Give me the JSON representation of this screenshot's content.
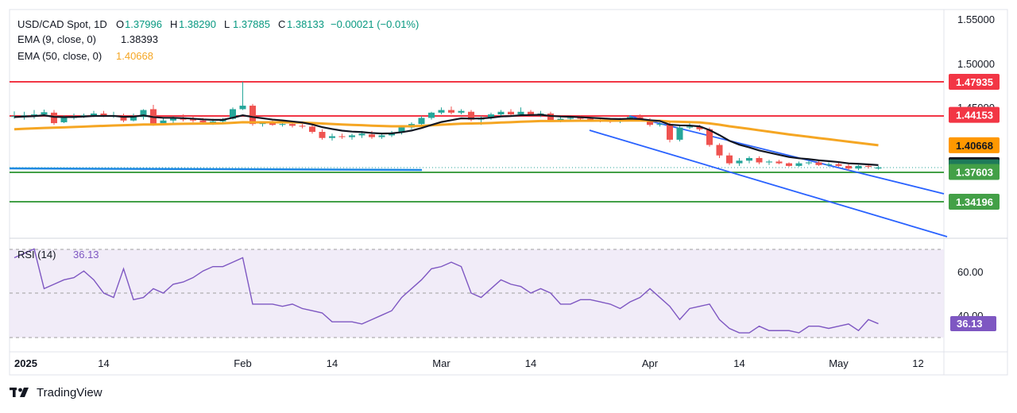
{
  "header": {
    "title": "USD/CAD Spot, 1D",
    "ohlc": [
      {
        "k": "O",
        "v": "1.37996"
      },
      {
        "k": "H",
        "v": "1.38290"
      },
      {
        "k": "L",
        "v": "1.37885"
      },
      {
        "k": "C",
        "v": "1.38133"
      }
    ],
    "change": "−0.00021 (−0.01%)",
    "indicators": [
      {
        "label": "EMA (9, close, 0)",
        "value": "1.38393",
        "color": "#131722"
      },
      {
        "label": "EMA (50, close, 0)",
        "value": "1.40668",
        "color": "#f5a623"
      }
    ]
  },
  "colors": {
    "up": "#26a69a",
    "down": "#ef5350",
    "ema9": "#131722",
    "ema50": "#f5a623",
    "resistance": "#f23645",
    "support": "#43a047",
    "channel": "#2962ff",
    "rsi": "#7e57c2",
    "rsi_band": "#ede7f6",
    "price_line": "#26a69a"
  },
  "y_axis_ticks": [
    "1.55000",
    "1.50000",
    "1.45000"
  ],
  "price_labels": [
    {
      "text": "1.47935",
      "price": 1.47935,
      "bg": "#f23645",
      "fg": "#ffffff"
    },
    {
      "text": "1.44153",
      "price": 1.44153,
      "bg": "#f23645",
      "fg": "#ffffff"
    },
    {
      "text": "1.40668",
      "price": 1.40668,
      "bg": "#ff9800",
      "fg": "#131722"
    },
    {
      "text": "1.38393",
      "price": 1.38393,
      "bg": "#131722",
      "fg": "#ffffff"
    },
    {
      "text": "1.38133",
      "price": 1.38133,
      "bg": "#1e7a5a",
      "fg": "#ffffff"
    },
    {
      "text": "1.37603",
      "price": 1.37603,
      "bg": "#43a047",
      "fg": "#ffffff"
    },
    {
      "text": "1.34196",
      "price": 1.34196,
      "bg": "#43a047",
      "fg": "#ffffff"
    }
  ],
  "rsi": {
    "label": "RSI (14)",
    "value": "36.13",
    "ticks": [
      "60.00",
      "40.00"
    ],
    "label_bg": "#7e57c2"
  },
  "x_axis_labels": [
    {
      "text": "2025",
      "day": 0
    },
    {
      "text": "14",
      "day": 9
    },
    {
      "text": "Feb",
      "day": 23
    },
    {
      "text": "14",
      "day": 32
    },
    {
      "text": "Mar",
      "day": 43
    },
    {
      "text": "14",
      "day": 52
    },
    {
      "text": "Apr",
      "day": 64
    },
    {
      "text": "14",
      "day": 73
    },
    {
      "text": "May",
      "day": 83
    },
    {
      "text": "12",
      "day": 91
    }
  ],
  "brand": "TradingView",
  "chart_data": {
    "type": "candlestick",
    "title": "USD/CAD Spot, 1D",
    "series": [
      {
        "name": "EMA (9, close, 0)",
        "last": 1.38393
      },
      {
        "name": "EMA (50, close, 0)",
        "last": 1.40668
      },
      {
        "name": "RSI (14)",
        "last": 36.13
      }
    ],
    "horizontal_levels": [
      1.47935,
      1.44153,
      1.37603,
      1.34196
    ],
    "last_close": 1.38133,
    "candles": [
      [
        1.4395,
        1.4455,
        1.437,
        1.44
      ],
      [
        1.44,
        1.445,
        1.436,
        1.441
      ],
      [
        1.441,
        1.447,
        1.437,
        1.442
      ],
      [
        1.442,
        1.4475,
        1.4395,
        1.4445
      ],
      [
        1.444,
        1.447,
        1.43,
        1.432
      ],
      [
        1.433,
        1.441,
        1.432,
        1.438
      ],
      [
        1.438,
        1.443,
        1.436,
        1.44
      ],
      [
        1.44,
        1.443,
        1.438,
        1.441
      ],
      [
        1.441,
        1.446,
        1.439,
        1.443
      ],
      [
        1.443,
        1.446,
        1.439,
        1.44
      ],
      [
        1.441,
        1.445,
        1.438,
        1.441
      ],
      [
        1.44,
        1.443,
        1.433,
        1.435
      ],
      [
        1.435,
        1.443,
        1.434,
        1.44
      ],
      [
        1.439,
        1.448,
        1.436,
        1.447
      ],
      [
        1.448,
        1.453,
        1.429,
        1.431
      ],
      [
        1.432,
        1.438,
        1.431,
        1.435
      ],
      [
        1.435,
        1.44,
        1.432,
        1.438
      ],
      [
        1.438,
        1.442,
        1.434,
        1.436
      ],
      [
        1.4365,
        1.44,
        1.433,
        1.435
      ],
      [
        1.435,
        1.438,
        1.431,
        1.433
      ],
      [
        1.433,
        1.437,
        1.43,
        1.434
      ],
      [
        1.434,
        1.438,
        1.431,
        1.436
      ],
      [
        1.437,
        1.45,
        1.436,
        1.448
      ],
      [
        1.448,
        1.4793,
        1.447,
        1.452
      ],
      [
        1.452,
        1.454,
        1.429,
        1.431
      ],
      [
        1.431,
        1.434,
        1.428,
        1.432
      ],
      [
        1.432,
        1.435,
        1.429,
        1.43
      ],
      [
        1.43,
        1.433,
        1.428,
        1.431
      ],
      [
        1.431,
        1.433,
        1.427,
        1.429
      ],
      [
        1.429,
        1.431,
        1.426,
        1.428
      ],
      [
        1.428,
        1.43,
        1.42,
        1.422
      ],
      [
        1.422,
        1.425,
        1.413,
        1.415
      ],
      [
        1.415,
        1.42,
        1.412,
        1.417
      ],
      [
        1.417,
        1.42,
        1.414,
        1.416
      ],
      [
        1.416,
        1.42,
        1.413,
        1.418
      ],
      [
        1.418,
        1.423,
        1.415,
        1.42
      ],
      [
        1.419,
        1.423,
        1.414,
        1.416
      ],
      [
        1.416,
        1.42,
        1.414,
        1.418
      ],
      [
        1.418,
        1.423,
        1.416,
        1.421
      ],
      [
        1.421,
        1.429,
        1.419,
        1.427
      ],
      [
        1.427,
        1.433,
        1.425,
        1.431
      ],
      [
        1.431,
        1.44,
        1.429,
        1.438
      ],
      [
        1.438,
        1.445,
        1.436,
        1.444
      ],
      [
        1.444,
        1.45,
        1.442,
        1.447
      ],
      [
        1.447,
        1.451,
        1.442,
        1.444
      ],
      [
        1.444,
        1.448,
        1.442,
        1.446
      ],
      [
        1.445,
        1.447,
        1.434,
        1.436
      ],
      [
        1.436,
        1.44,
        1.43,
        1.438
      ],
      [
        1.438,
        1.444,
        1.436,
        1.442
      ],
      [
        1.442,
        1.447,
        1.439,
        1.445
      ],
      [
        1.445,
        1.448,
        1.44,
        1.442
      ],
      [
        1.442,
        1.45,
        1.441,
        1.445
      ],
      [
        1.445,
        1.447,
        1.44,
        1.442
      ],
      [
        1.442,
        1.446,
        1.439,
        1.443
      ],
      [
        1.443,
        1.445,
        1.434,
        1.435
      ],
      [
        1.435,
        1.439,
        1.433,
        1.437
      ],
      [
        1.437,
        1.44,
        1.435,
        1.438
      ],
      [
        1.438,
        1.441,
        1.435,
        1.437
      ],
      [
        1.437,
        1.44,
        1.435,
        1.436
      ],
      [
        1.436,
        1.438,
        1.433,
        1.435
      ],
      [
        1.435,
        1.438,
        1.432,
        1.434
      ],
      [
        1.434,
        1.438,
        1.432,
        1.436
      ],
      [
        1.436,
        1.441,
        1.434,
        1.439
      ],
      [
        1.439,
        1.442,
        1.434,
        1.435
      ],
      [
        1.435,
        1.438,
        1.428,
        1.43
      ],
      [
        1.43,
        1.433,
        1.428,
        1.431
      ],
      [
        1.431,
        1.433,
        1.41,
        1.413
      ],
      [
        1.413,
        1.429,
        1.411,
        1.427
      ],
      [
        1.427,
        1.432,
        1.425,
        1.428
      ],
      [
        1.428,
        1.43,
        1.423,
        1.425
      ],
      [
        1.425,
        1.427,
        1.405,
        1.407
      ],
      [
        1.407,
        1.409,
        1.392,
        1.395
      ],
      [
        1.395,
        1.398,
        1.384,
        1.386
      ],
      [
        1.386,
        1.392,
        1.383,
        1.389
      ],
      [
        1.389,
        1.394,
        1.386,
        1.392
      ],
      [
        1.392,
        1.394,
        1.385,
        1.387
      ],
      [
        1.387,
        1.39,
        1.384,
        1.388
      ],
      [
        1.388,
        1.39,
        1.385,
        1.386
      ],
      [
        1.386,
        1.387,
        1.382,
        1.383
      ],
      [
        1.383,
        1.388,
        1.382,
        1.386
      ],
      [
        1.386,
        1.389,
        1.384,
        1.387
      ],
      [
        1.387,
        1.389,
        1.383,
        1.384
      ],
      [
        1.384,
        1.387,
        1.382,
        1.385
      ],
      [
        1.385,
        1.387,
        1.382,
        1.383
      ],
      [
        1.383,
        1.385,
        1.378,
        1.38
      ],
      [
        1.38,
        1.384,
        1.378,
        1.383
      ],
      [
        1.383,
        1.385,
        1.38,
        1.382
      ],
      [
        1.37996,
        1.3829,
        1.37885,
        1.38133
      ]
    ],
    "rsi_values": [
      66,
      68,
      70,
      52,
      54,
      56,
      57,
      60,
      56,
      50,
      48,
      61,
      47,
      48,
      52,
      50,
      54,
      55,
      57,
      60,
      62,
      62,
      64,
      66,
      45,
      45,
      45,
      44,
      45,
      43,
      42,
      41,
      37,
      37,
      37,
      36,
      38,
      40,
      42,
      48,
      52,
      56,
      61,
      62,
      64,
      62,
      50,
      48,
      52,
      56,
      54,
      53,
      50,
      52,
      50,
      45,
      45,
      47,
      47,
      46,
      45,
      43,
      46,
      48,
      52,
      48,
      44,
      38,
      43,
      44,
      45,
      38,
      34,
      32,
      32,
      35,
      33,
      33,
      33,
      32,
      35,
      35,
      34,
      35,
      36,
      33,
      38,
      36.13
    ],
    "ema9": [
      1.439,
      1.4395,
      1.44,
      1.441,
      1.4392,
      1.4389,
      1.4391,
      1.4395,
      1.4402,
      1.4402,
      1.4403,
      1.4392,
      1.4394,
      1.4409,
      1.4389,
      1.4381,
      1.4381,
      1.4377,
      1.4371,
      1.4363,
      1.4358,
      1.4358,
      1.4382,
      1.441,
      1.439,
      1.4376,
      1.4361,
      1.4351,
      1.4339,
      1.4327,
      1.4305,
      1.4274,
      1.4253,
      1.4234,
      1.4223,
      1.4218,
      1.4207,
      1.4201,
      1.4203,
      1.4216,
      1.4235,
      1.4264,
      1.4299,
      1.4333,
      1.4354,
      1.4375,
      1.4372,
      1.4374,
      1.4383,
      1.4396,
      1.4401,
      1.4411,
      1.4413,
      1.4416,
      1.4403,
      1.4396,
      1.4393,
      1.4388,
      1.4382,
      1.4376,
      1.4369,
      1.4367,
      1.4371,
      1.4367,
      1.4354,
      1.4345,
      1.4302,
      1.4295,
      1.4292,
      1.4283,
      1.4241,
      1.4183,
      1.4118,
      1.4073,
      1.4042,
      1.4007,
      1.3982,
      1.3957,
      1.3932,
      1.3917,
      1.3908,
      1.3894,
      1.3885,
      1.3874,
      1.3859,
      1.3854,
      1.3847,
      1.38393
    ],
    "ema50": [
      1.425,
      1.4255,
      1.426,
      1.4265,
      1.4268,
      1.4272,
      1.4276,
      1.428,
      1.4285,
      1.4289,
      1.4293,
      1.4296,
      1.43,
      1.4305,
      1.4305,
      1.4307,
      1.431,
      1.4312,
      1.4314,
      1.4315,
      1.4316,
      1.4318,
      1.4324,
      1.4331,
      1.433,
      1.433,
      1.4329,
      1.4329,
      1.4328,
      1.4326,
      1.4322,
      1.4316,
      1.431,
      1.4304,
      1.43,
      1.4296,
      1.4291,
      1.4287,
      1.4284,
      1.4284,
      1.4285,
      1.4289,
      1.4295,
      1.4302,
      1.4308,
      1.4314,
      1.4316,
      1.4318,
      1.4322,
      1.4327,
      1.4331,
      1.4336,
      1.434,
      1.4344,
      1.4344,
      1.4345,
      1.4347,
      1.4348,
      1.4348,
      1.4349,
      1.4348,
      1.4349,
      1.435,
      1.435,
      1.4348,
      1.4347,
      1.4338,
      1.4335,
      1.4332,
      1.4328,
      1.4317,
      1.4302,
      1.4284,
      1.4269,
      1.4254,
      1.4238,
      1.4223,
      1.4207,
      1.4191,
      1.4177,
      1.4163,
      1.4149,
      1.4136,
      1.4122,
      1.4108,
      1.4094,
      1.408,
      1.40668
    ]
  }
}
